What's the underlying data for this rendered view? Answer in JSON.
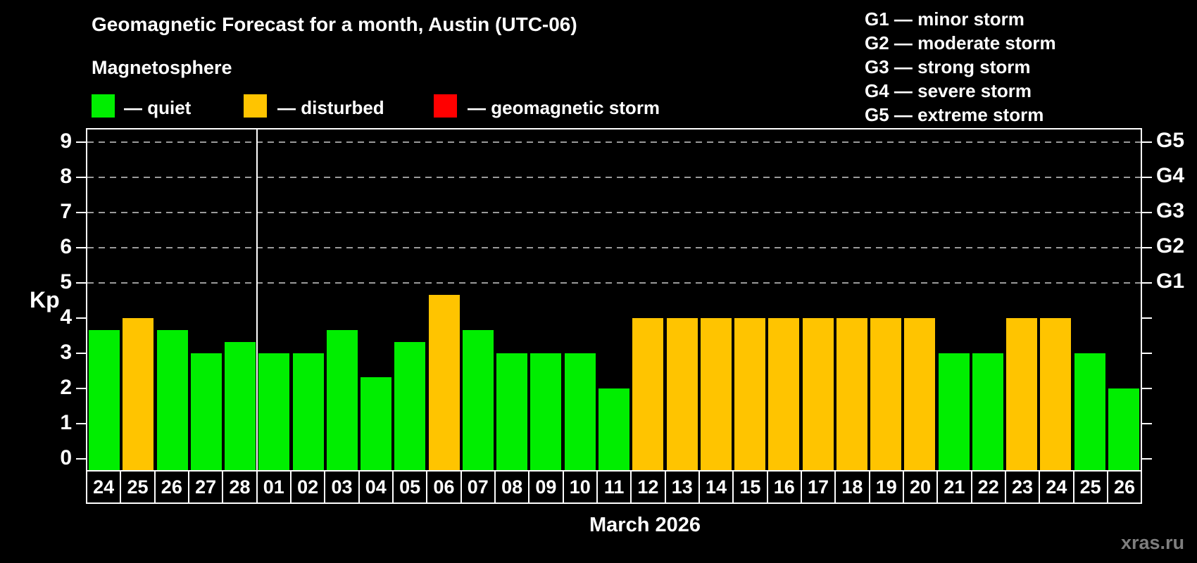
{
  "subtitle": "Magnetosphere",
  "legend": {
    "items": [
      {
        "label": "— quiet",
        "color": "#00ee00"
      },
      {
        "label": "— disturbed",
        "color": "#ffc400"
      },
      {
        "label": "— geomagnetic storm",
        "color": "#ff0000"
      }
    ]
  },
  "g_scale_legend": {
    "lines": [
      "G1 — minor storm",
      "G2 — moderate storm",
      "G3 — strong storm",
      "G4 — severe storm",
      "G5 — extreme storm"
    ]
  },
  "chart_data": {
    "type": "bar",
    "title": "Geomagnetic Forecast for a month, Austin (UTC-06)",
    "ylabel": "Kp",
    "xlabel": "March 2026",
    "ylim": [
      0,
      9.4
    ],
    "yticks": [
      0,
      1,
      2,
      3,
      4,
      5,
      6,
      7,
      8,
      9
    ],
    "grid_levels_kp": [
      5,
      6,
      7,
      8,
      9
    ],
    "right_axis": [
      {
        "label": "G1",
        "kp": 5
      },
      {
        "label": "G2",
        "kp": 6
      },
      {
        "label": "G3",
        "kp": 7
      },
      {
        "label": "G4",
        "kp": 8
      },
      {
        "label": "G5",
        "kp": 9
      }
    ],
    "legend_position": "top-left",
    "grid": "dashed-gray-at-storm-levels",
    "month_separator_index": 5,
    "colors": {
      "quiet": "#00ee00",
      "disturbed": "#ffc400",
      "storm": "#ff0000"
    },
    "bars": [
      {
        "date": "24",
        "kp": 3.67,
        "status": "quiet"
      },
      {
        "date": "25",
        "kp": 4,
        "status": "disturbed"
      },
      {
        "date": "26",
        "kp": 3.67,
        "status": "quiet"
      },
      {
        "date": "27",
        "kp": 3,
        "status": "quiet"
      },
      {
        "date": "28",
        "kp": 3.33,
        "status": "quiet"
      },
      {
        "date": "01",
        "kp": 3,
        "status": "quiet"
      },
      {
        "date": "02",
        "kp": 3,
        "status": "quiet"
      },
      {
        "date": "03",
        "kp": 3.67,
        "status": "quiet"
      },
      {
        "date": "04",
        "kp": 2.33,
        "status": "quiet"
      },
      {
        "date": "05",
        "kp": 3.33,
        "status": "quiet"
      },
      {
        "date": "06",
        "kp": 4.67,
        "status": "disturbed"
      },
      {
        "date": "07",
        "kp": 3.67,
        "status": "quiet"
      },
      {
        "date": "08",
        "kp": 3,
        "status": "quiet"
      },
      {
        "date": "09",
        "kp": 3,
        "status": "quiet"
      },
      {
        "date": "10",
        "kp": 3,
        "status": "quiet"
      },
      {
        "date": "11",
        "kp": 2,
        "status": "quiet"
      },
      {
        "date": "12",
        "kp": 4,
        "status": "disturbed"
      },
      {
        "date": "13",
        "kp": 4,
        "status": "disturbed"
      },
      {
        "date": "14",
        "kp": 4,
        "status": "disturbed"
      },
      {
        "date": "15",
        "kp": 4,
        "status": "disturbed"
      },
      {
        "date": "16",
        "kp": 4,
        "status": "disturbed"
      },
      {
        "date": "17",
        "kp": 4,
        "status": "disturbed"
      },
      {
        "date": "18",
        "kp": 4,
        "status": "disturbed"
      },
      {
        "date": "19",
        "kp": 4,
        "status": "disturbed"
      },
      {
        "date": "20",
        "kp": 4,
        "status": "disturbed"
      },
      {
        "date": "21",
        "kp": 3,
        "status": "quiet"
      },
      {
        "date": "22",
        "kp": 3,
        "status": "quiet"
      },
      {
        "date": "23",
        "kp": 4,
        "status": "disturbed"
      },
      {
        "date": "24",
        "kp": 4,
        "status": "disturbed"
      },
      {
        "date": "25",
        "kp": 3,
        "status": "quiet"
      },
      {
        "date": "26",
        "kp": 2,
        "status": "quiet"
      }
    ]
  },
  "footer": {
    "watermark": "xras.ru"
  }
}
